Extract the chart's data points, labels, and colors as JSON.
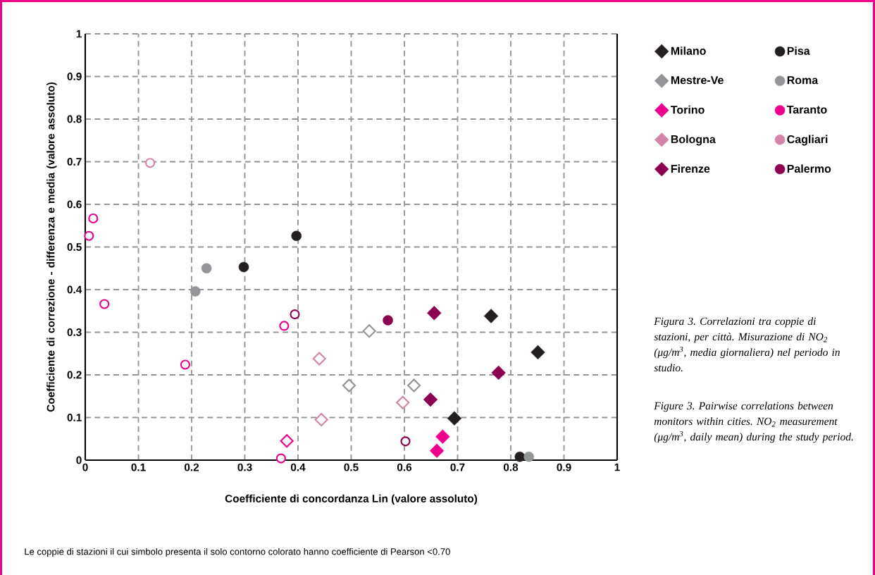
{
  "chart_data": {
    "type": "scatter",
    "xlabel": "Coefficiente di concordanza Lin (valore assoluto)",
    "ylabel": "Coefficiente di correzione - differenza e media (valore assoluto)",
    "xlim": [
      0,
      1
    ],
    "ylim": [
      0,
      1
    ],
    "xticks": [
      0,
      0.1,
      0.2,
      0.3,
      0.4,
      0.5,
      0.6,
      0.7,
      0.8,
      0.9,
      1
    ],
    "yticks": [
      0,
      0.1,
      0.2,
      0.3,
      0.4,
      0.5,
      0.6,
      0.7,
      0.8,
      0.9,
      1
    ],
    "grid": true,
    "legend": "right",
    "series": [
      {
        "name": "Milano",
        "color": "#231f20",
        "marker": "diamond",
        "x": [
          0.763,
          0.851,
          0.694
        ],
        "values": [
          0.338,
          0.253,
          0.098
        ]
      },
      {
        "name": "Pisa",
        "color": "#231f20",
        "marker": "circle",
        "x": [
          0.298,
          0.397,
          0.817
        ],
        "values": [
          0.453,
          0.526,
          0.008
        ]
      },
      {
        "name": "Mestre-Ve",
        "color": "#939598",
        "marker": "diamond"
      },
      {
        "name": "Roma",
        "color": "#939598",
        "marker": "circle",
        "x": [
          0.228,
          0.207,
          0.834
        ],
        "values": [
          0.45,
          0.396,
          0.008
        ]
      },
      {
        "name": "Torino",
        "color": "#ec008c",
        "marker": "diamond",
        "x": [
          0.672,
          0.661
        ],
        "values": [
          0.055,
          0.022
        ]
      },
      {
        "name": "Taranto",
        "color": "#ec008c",
        "marker": "circle"
      },
      {
        "name": "Bologna",
        "color": "#d484a8",
        "marker": "diamond"
      },
      {
        "name": "Cagliari",
        "color": "#d484a8",
        "marker": "circle"
      },
      {
        "name": "Firenze",
        "color": "#8b0051",
        "marker": "diamond",
        "x": [
          0.656,
          0.777,
          0.649
        ],
        "values": [
          0.345,
          0.205,
          0.142
        ]
      },
      {
        "name": "Palermo",
        "color": "#8b0051",
        "marker": "circle",
        "x": [
          0.569
        ],
        "values": [
          0.328
        ]
      },
      {
        "color": "#939598",
        "marker": "diamond-open",
        "x": [
          0.534,
          0.496,
          0.618
        ],
        "values": [
          0.303,
          0.175,
          0.175
        ]
      },
      {
        "color": "#ec008c",
        "marker": "circle-open",
        "x": [
          0.015,
          0.007,
          0.036,
          0.374,
          0.188,
          0.368
        ],
        "values": [
          0.567,
          0.526,
          0.366,
          0.315,
          0.224,
          0.004
        ]
      },
      {
        "color": "#d484a8",
        "marker": "diamond-open",
        "x": [
          0.44,
          0.597,
          0.444
        ],
        "values": [
          0.238,
          0.135,
          0.095
        ]
      },
      {
        "color": "#d484a8",
        "marker": "circle-open",
        "x": [
          0.122
        ],
        "values": [
          0.697
        ]
      },
      {
        "color": "#ec008c",
        "marker": "diamond-open",
        "x": [
          0.379
        ],
        "values": [
          0.045
        ]
      },
      {
        "color": "#8b0051",
        "marker": "circle-open",
        "x": [
          0.394,
          0.602
        ],
        "values": [
          0.342,
          0.044
        ]
      }
    ],
    "annotations": [
      "Figura 3. Correlazioni tra coppie di stazioni, per città. Misurazione di NO$_{2}$ (μg/m$^{3}$, media giornaliera) nel periodo in studio.",
      "Figure 3. Pairwise correlations between monitors within cities. NO$_{2}$ measurement (μg/m$^{3}$, daily mean) during the study period.",
      "Le coppie di stazioni il cui simbolo presenta il solo contorno colorato hanno coefficiente di Pearson <0.70"
    ]
  }
}
